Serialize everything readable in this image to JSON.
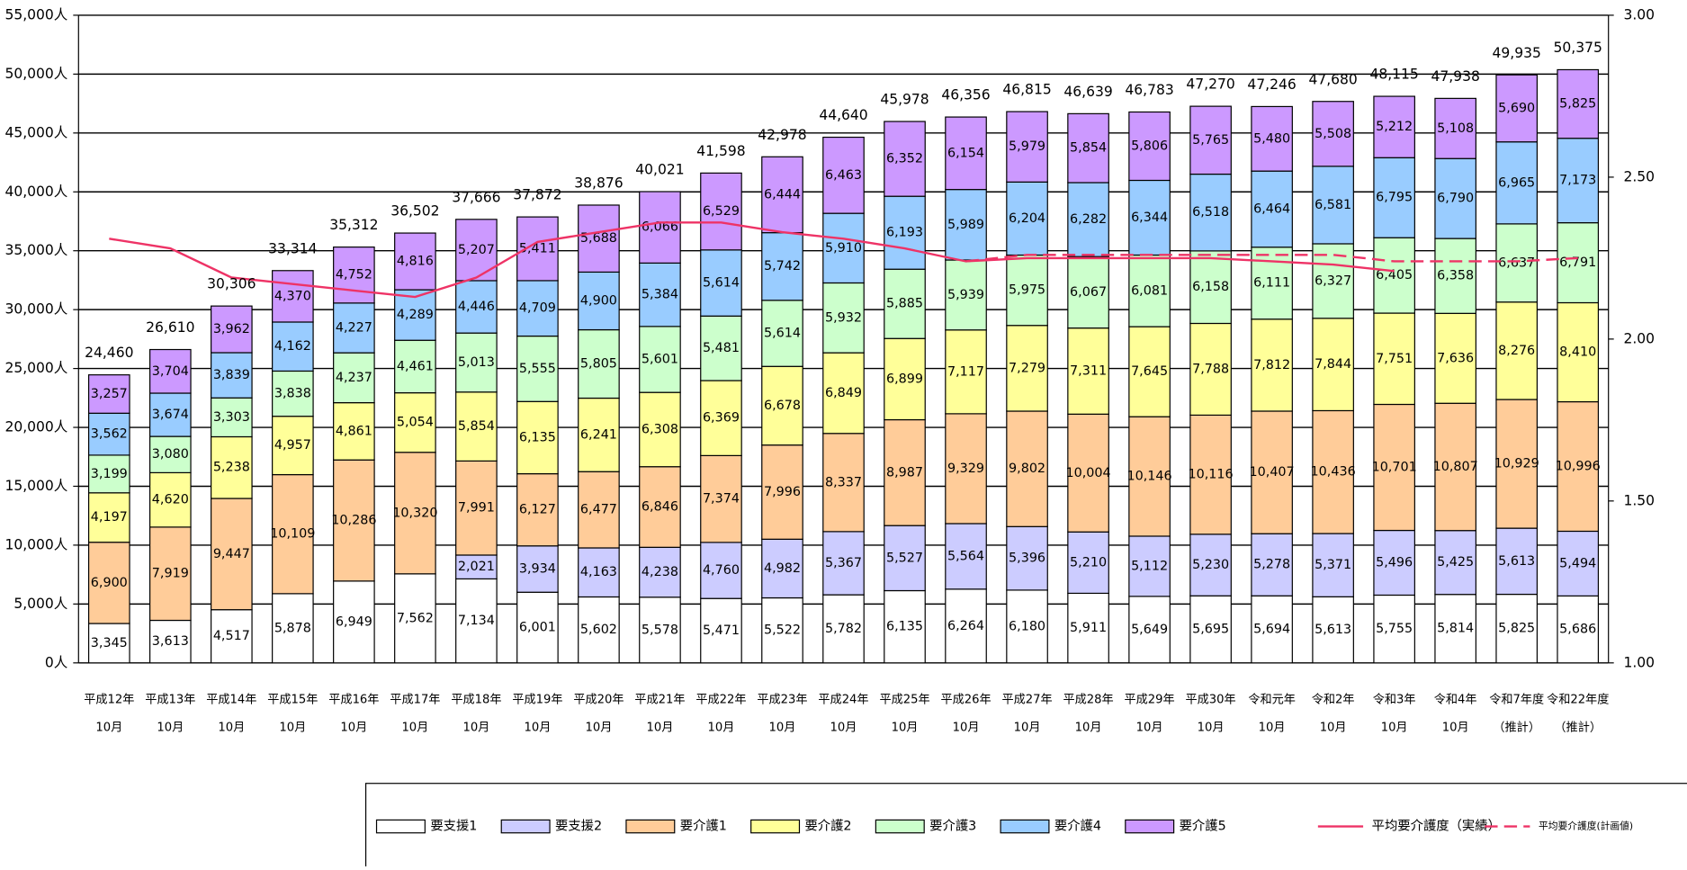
{
  "chart_data": {
    "type": "bar",
    "stacked": true,
    "categories": [
      "平成12年\n10月",
      "平成13年\n10月",
      "平成14年\n10月",
      "平成15年\n10月",
      "平成16年\n10月",
      "平成17年\n10月",
      "平成18年\n10月",
      "平成19年\n10月",
      "平成20年\n10月",
      "平成21年\n10月",
      "平成22年\n10月",
      "平成23年\n10月",
      "平成24年\n10月",
      "平成25年\n10月",
      "平成26年\n10月",
      "平成27年\n10月",
      "平成28年\n10月",
      "平成29年\n10月",
      "平成30年\n10月",
      "令和元年\n10月",
      "令和2年\n10月",
      "令和3年\n10月",
      "令和4年\n10月",
      "令和7年度\n（推計）",
      "令和22年度\n（推計）"
    ],
    "series": [
      {
        "name": "要支援1",
        "color": "#ffffff",
        "values": [
          3345,
          3613,
          4517,
          5878,
          6949,
          7562,
          7134,
          6001,
          5602,
          5578,
          5471,
          5522,
          5782,
          6135,
          6264,
          6180,
          5911,
          5649,
          5695,
          5694,
          5613,
          5755,
          5814,
          5825,
          5686
        ],
        "value_labels": [
          "3,345",
          "3,613",
          "4,517",
          "5,878",
          "6,949",
          "7,562",
          "7,134",
          "6,001",
          "5,602",
          "5,578",
          "5,471",
          "5,522",
          "5,782",
          "6,135",
          "6,264",
          "6,180",
          "5,911",
          "5,649",
          "5,695",
          "5,694",
          "5,613",
          "5,755",
          "5,814",
          "5,825",
          "5,686"
        ]
      },
      {
        "name": "要支援2",
        "color": "#ccccff",
        "values": [
          null,
          null,
          null,
          null,
          null,
          null,
          2021,
          3934,
          4163,
          4238,
          4760,
          4982,
          5367,
          5527,
          5564,
          5396,
          5210,
          5112,
          5230,
          5278,
          5371,
          5496,
          5425,
          5613,
          5494
        ],
        "value_labels": [
          null,
          null,
          null,
          null,
          null,
          null,
          "2,021",
          "3,934",
          "4,163",
          "4,238",
          "4,760",
          "4,982",
          "5,367",
          "5,527",
          "5,564",
          "5,396",
          "5,210",
          "5,112",
          "5,230",
          "5,278",
          "5,371",
          "5,496",
          "5,425",
          "5,613",
          "5,494"
        ]
      },
      {
        "name": "要介護1",
        "color": "#ffcc99",
        "values": [
          6900,
          7919,
          9447,
          10109,
          10286,
          10320,
          7991,
          6127,
          6477,
          6846,
          7374,
          7996,
          8337,
          8987,
          9329,
          9802,
          10004,
          10146,
          10116,
          10407,
          10436,
          10701,
          10807,
          10929,
          10996
        ],
        "value_labels": [
          "6,900",
          "7,919",
          "9,447",
          "10,109",
          "10,286",
          "10,320",
          "7,991",
          "6,127",
          "6,477",
          "6,846",
          "7,374",
          "7,996",
          "8,337",
          "8,987",
          "9,329",
          "9,802",
          "10,004",
          "10,146",
          "10,116",
          "10,407",
          "10,436",
          "10,701",
          "10,807",
          "10,929",
          "10,996"
        ]
      },
      {
        "name": "要介護2",
        "color": "#ffff99",
        "values": [
          4197,
          4620,
          5238,
          4957,
          4861,
          5054,
          5854,
          6135,
          6241,
          6308,
          6369,
          6678,
          6849,
          6899,
          7117,
          7279,
          7311,
          7645,
          7788,
          7812,
          7844,
          7751,
          7636,
          8276,
          8410
        ],
        "value_labels": [
          "4,197",
          "4,620",
          "5,238",
          "4,957",
          "4,861",
          "5,054",
          "5,854",
          "6,135",
          "6,241",
          "6,308",
          "6,369",
          "6,678",
          "6,849",
          "6,899",
          "7,117",
          "7,279",
          "7,311",
          "7,645",
          "7,788",
          "7,812",
          "7,844",
          "7,751",
          "7,636",
          "8,276",
          "8,410"
        ]
      },
      {
        "name": "要介護3",
        "color": "#ccffcc",
        "values": [
          3199,
          3080,
          3303,
          3838,
          4237,
          4461,
          5013,
          5555,
          5805,
          5601,
          5481,
          5614,
          5932,
          5885,
          5939,
          5975,
          6067,
          6081,
          6158,
          6111,
          6327,
          6405,
          6358,
          6637,
          6791
        ],
        "value_labels": [
          "3,199",
          "3,080",
          "3,303",
          "3,838",
          "4,237",
          "4,461",
          "5,013",
          "5,555",
          "5,805",
          "5,601",
          "5,481",
          "5,614",
          "5,932",
          "5,885",
          "5,939",
          "5,975",
          "6,067",
          "6,081",
          "6,158",
          "6,111",
          "6,327",
          "6,405",
          "6,358",
          "6,637",
          "6,791"
        ]
      },
      {
        "name": "要介護4",
        "color": "#99ccff",
        "values": [
          3562,
          3674,
          3839,
          4162,
          4227,
          4289,
          4446,
          4709,
          4900,
          5384,
          5614,
          5742,
          5910,
          6193,
          5989,
          6204,
          6282,
          6344,
          6518,
          6464,
          6581,
          6795,
          6790,
          6965,
          7173
        ],
        "value_labels": [
          "3,562",
          "3,674",
          "3,839",
          "4,162",
          "4,227",
          "4,289",
          "4,446",
          "4,709",
          "4,900",
          "5,384",
          "5,614",
          "5,742",
          "5,910",
          "6,193",
          "5,989",
          "6,204",
          "6,282",
          "6,344",
          "6,518",
          "6,464",
          "6,581",
          "6,795",
          "6,790",
          "6,965",
          "7,173"
        ]
      },
      {
        "name": "要介護5",
        "color": "#cc99ff",
        "values": [
          3257,
          3704,
          3962,
          4370,
          4752,
          4816,
          5207,
          5411,
          5688,
          6066,
          6529,
          6444,
          6463,
          6352,
          6154,
          5979,
          5854,
          5806,
          5765,
          5480,
          5508,
          5212,
          5108,
          5690,
          5825
        ],
        "value_labels": [
          "3,257",
          "3,704",
          "3,962",
          "4,370",
          "4,752",
          "4,816",
          "5,207",
          "5,411",
          "5,688",
          "6,066",
          "6,529",
          "6,444",
          "6,463",
          "6,352",
          "6,154",
          "5,979",
          "5,854",
          "5,806",
          "5,765",
          "5,480",
          "5,508",
          "5,212",
          "5,108",
          "5,690",
          "5,825"
        ]
      },
      {
        "name": "平均要介護度（実績）",
        "type": "line",
        "axis": "y2",
        "color": "#ee3366",
        "dashed": false,
        "values": [
          2.31,
          2.28,
          2.19,
          2.17,
          2.15,
          2.13,
          2.19,
          2.3,
          2.33,
          2.36,
          2.36,
          2.33,
          2.31,
          2.28,
          2.24,
          2.25,
          2.25,
          2.25,
          2.25,
          2.24,
          2.23,
          2.21,
          null,
          null,
          null
        ]
      },
      {
        "name": "平均要介護度(計画値)",
        "type": "line",
        "axis": "y2",
        "color": "#ee3366",
        "dashed": true,
        "values": [
          null,
          null,
          null,
          null,
          null,
          null,
          null,
          null,
          null,
          null,
          null,
          null,
          null,
          null,
          2.24,
          2.26,
          2.26,
          2.26,
          2.26,
          2.26,
          2.26,
          2.24,
          2.24,
          2.24,
          2.25
        ]
      }
    ],
    "totals": {
      "values": [
        24460,
        26610,
        30306,
        33314,
        35312,
        36502,
        37666,
        37872,
        38876,
        40021,
        41598,
        42978,
        44640,
        45978,
        46356,
        46815,
        46639,
        46783,
        47270,
        47246,
        47680,
        48115,
        47938,
        49935,
        50375
      ],
      "value_labels": [
        "24,460",
        "26,610",
        "30,306",
        "33,314",
        "35,312",
        "36,502",
        "37,666",
        "37,872",
        "38,876",
        "40,021",
        "41,598",
        "42,978",
        "44,640",
        "45,978",
        "46,356",
        "46,815",
        "46,639",
        "46,783",
        "47,270",
        "47,246",
        "47,680",
        "48,115",
        "47,938",
        "49,935",
        "50,375"
      ]
    },
    "ylim": [
      0,
      55000
    ],
    "yticks": [
      {
        "value": 0,
        "label": "0人"
      },
      {
        "value": 5000,
        "label": "5,000人"
      },
      {
        "value": 10000,
        "label": "10,000人"
      },
      {
        "value": 15000,
        "label": "15,000人"
      },
      {
        "value": 20000,
        "label": "20,000人"
      },
      {
        "value": 25000,
        "label": "25,000人"
      },
      {
        "value": 30000,
        "label": "30,000人"
      },
      {
        "value": 35000,
        "label": "35,000人"
      },
      {
        "value": 40000,
        "label": "40,000人"
      },
      {
        "value": 45000,
        "label": "45,000人"
      },
      {
        "value": 50000,
        "label": "50,000人"
      },
      {
        "value": 55000,
        "label": "55,000人"
      }
    ],
    "y2lim": [
      1,
      3
    ],
    "y2ticks": [
      {
        "value": 1,
        "label": "1.00"
      },
      {
        "value": 1.5,
        "label": "1.50"
      },
      {
        "value": 2,
        "label": "2.00"
      },
      {
        "value": 2.5,
        "label": "2.50"
      },
      {
        "value": 3,
        "label": "3.00"
      }
    ],
    "grid": true,
    "legend": "bottom"
  }
}
